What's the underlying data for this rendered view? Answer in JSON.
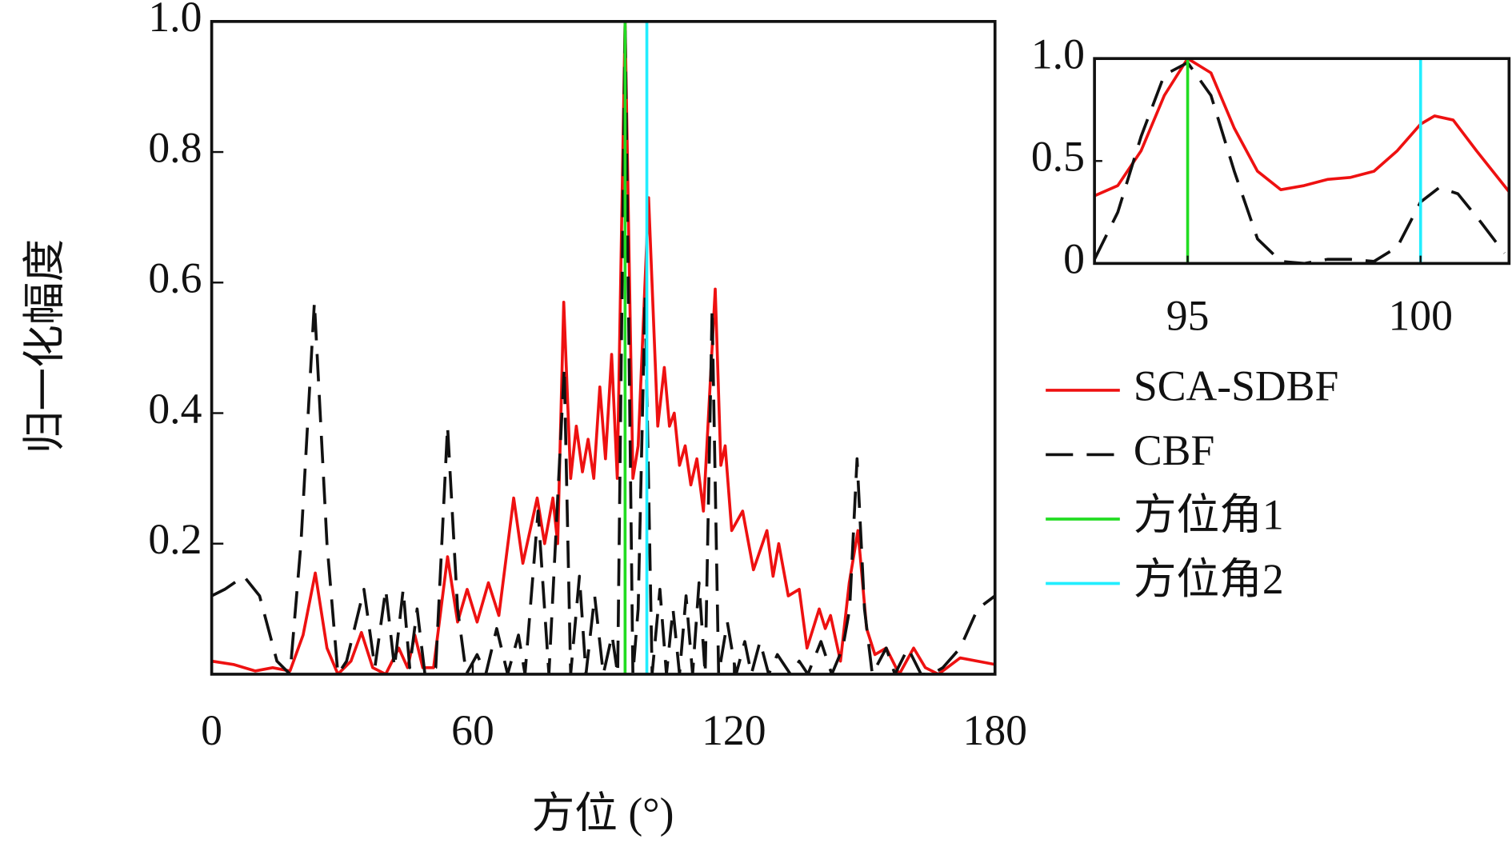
{
  "chart_data": [
    {
      "type": "line",
      "xlabel": "方位 (°)",
      "ylabel": "归一化幅度",
      "xlim": [
        0,
        180
      ],
      "xticks": [
        0,
        60,
        120,
        180
      ],
      "ylim": [
        0,
        1
      ],
      "yticks": [
        0.2,
        0.4,
        0.6,
        0.8,
        {
          "value": 1,
          "label": "1.0"
        }
      ],
      "series": [
        {
          "name": "SCA-SDBF",
          "color": "#ee1111",
          "style": "solid",
          "x": [
            0,
            5,
            10,
            14,
            18,
            21,
            23.8,
            26.5,
            29,
            32,
            34.4,
            37,
            40,
            43,
            45,
            46.7,
            48.5,
            51,
            54.2,
            56.5,
            58.7,
            61,
            63.6,
            66,
            69.4,
            71.5,
            74.8,
            76.5,
            78.4,
            79.5,
            80.9,
            82.5,
            83.8,
            85.2,
            86.5,
            87.8,
            89.2,
            90.5,
            91.9,
            93.2,
            95,
            96.8,
            98,
            100.4,
            102.5,
            104,
            105.2,
            106.3,
            107.5,
            108.8,
            110.1,
            111.5,
            113,
            115.7,
            117,
            118,
            119.5,
            122,
            124.5,
            127.6,
            129,
            130.3,
            132.5,
            135,
            136.8,
            139.6,
            141,
            142.2,
            144.5,
            146.5,
            148.5,
            150.5,
            152.4,
            155,
            158,
            161.3,
            164,
            167,
            172,
            180
          ],
          "values": [
            0.02,
            0.015,
            0.005,
            0.01,
            0.005,
            0.06,
            0.155,
            0.04,
            0,
            0.02,
            0.064,
            0.01,
            0,
            0.04,
            0.01,
            0.06,
            0.01,
            0.01,
            0.18,
            0.08,
            0.13,
            0.08,
            0.14,
            0.09,
            0.27,
            0.17,
            0.27,
            0.2,
            0.27,
            0.2,
            0.57,
            0.3,
            0.38,
            0.31,
            0.36,
            0.3,
            0.44,
            0.33,
            0.49,
            0.3,
            1,
            0.3,
            0.35,
            0.73,
            0.38,
            0.47,
            0.38,
            0.4,
            0.32,
            0.35,
            0.29,
            0.33,
            0.25,
            0.59,
            0.32,
            0.35,
            0.22,
            0.25,
            0.16,
            0.22,
            0.15,
            0.2,
            0.12,
            0.13,
            0.04,
            0.1,
            0.07,
            0.09,
            0.02,
            0.14,
            0.22,
            0.07,
            0.03,
            0.04,
            0,
            0.04,
            0.01,
            0,
            0.025,
            0.015
          ]
        },
        {
          "name": "CBF",
          "color": "#111111",
          "style": "dashed",
          "x": [
            0,
            3,
            7.4,
            11,
            15,
            18,
            20.5,
            23.6,
            26.5,
            29,
            31,
            35,
            37.5,
            40,
            42,
            44,
            45.5,
            47.2,
            49,
            51.5,
            54.2,
            56.5,
            58.5,
            61,
            63,
            65.5,
            68,
            70.5,
            72,
            75,
            77.5,
            79,
            81,
            82.5,
            84.5,
            86,
            88,
            90,
            92,
            93.3,
            95,
            96.8,
            98,
            99.6,
            101.2,
            103,
            104.5,
            106,
            107.5,
            109,
            110.5,
            112,
            113.4,
            115,
            116.5,
            118.5,
            120.5,
            122.5,
            124,
            126,
            128,
            130,
            133,
            135,
            137,
            140,
            142.5,
            145,
            146.6,
            148.3,
            150,
            151.8,
            155,
            157,
            160,
            163,
            165.5,
            168,
            172,
            176,
            180
          ],
          "values": [
            0.12,
            0.13,
            0.15,
            0.12,
            0.02,
            0,
            0.2,
            0.57,
            0.2,
            0,
            0.02,
            0.13,
            0.01,
            0.13,
            0.01,
            0.13,
            0.01,
            0.1,
            0,
            0.01,
            0.38,
            0.1,
            0,
            0.03,
            0,
            0.07,
            0,
            0.06,
            0,
            0.25,
            0,
            0.2,
            0.47,
            0,
            0.15,
            0,
            0.12,
            0,
            0.06,
            0,
            1,
            0,
            0.1,
            0.58,
            0,
            0.13,
            0,
            0.1,
            0,
            0.12,
            0,
            0.14,
            0,
            0.56,
            0,
            0.08,
            0,
            0.05,
            0,
            0.05,
            0,
            0.03,
            0,
            0.02,
            0,
            0.05,
            0,
            0.04,
            0.1,
            0.33,
            0.1,
            0,
            0.04,
            0,
            0.04,
            0,
            0,
            0.01,
            0.04,
            0.1,
            0.12
          ]
        },
        {
          "name": "方位角1",
          "color": "#22dd22",
          "style": "solid",
          "x": [
            95,
            95
          ],
          "values": [
            0,
            1
          ]
        },
        {
          "name": "方位角2",
          "color": "#22eeff",
          "style": "solid",
          "x": [
            100,
            100
          ],
          "values": [
            0,
            1
          ]
        }
      ]
    },
    {
      "type": "line",
      "xlim": [
        93,
        101.9
      ],
      "xticks": [
        95,
        100
      ],
      "ylim": [
        0,
        1
      ],
      "yticks": [
        0,
        0.5,
        {
          "value": 1,
          "label": "1.0"
        }
      ],
      "series": [
        {
          "color": "#ee1111",
          "style": "solid",
          "x": [
            93,
            93.5,
            94,
            94.5,
            95,
            95.5,
            96,
            96.5,
            97,
            97.5,
            98,
            98.5,
            99,
            99.5,
            100,
            100.3,
            100.7,
            101.2,
            101.9
          ],
          "values": [
            0.33,
            0.38,
            0.55,
            0.82,
            1,
            0.93,
            0.66,
            0.45,
            0.36,
            0.38,
            0.41,
            0.42,
            0.45,
            0.55,
            0.68,
            0.72,
            0.7,
            0.55,
            0.35
          ]
        },
        {
          "color": "#111111",
          "style": "dashed",
          "x": [
            93,
            93.5,
            94,
            94.5,
            95,
            95.5,
            96,
            96.5,
            97,
            97.5,
            98,
            98.5,
            99,
            99.5,
            100,
            100.4,
            100.8,
            101.3,
            101.8
          ],
          "values": [
            0.02,
            0.25,
            0.62,
            0.92,
            0.98,
            0.82,
            0.45,
            0.12,
            0.01,
            0,
            0.02,
            0.02,
            0.01,
            0.08,
            0.3,
            0.37,
            0.34,
            0.2,
            0.05
          ]
        },
        {
          "color": "#22dd22",
          "style": "solid",
          "x": [
            95,
            95
          ],
          "values": [
            0,
            1
          ]
        },
        {
          "color": "#22eeff",
          "style": "solid",
          "x": [
            100,
            100
          ],
          "values": [
            0,
            1
          ]
        }
      ]
    }
  ]
}
